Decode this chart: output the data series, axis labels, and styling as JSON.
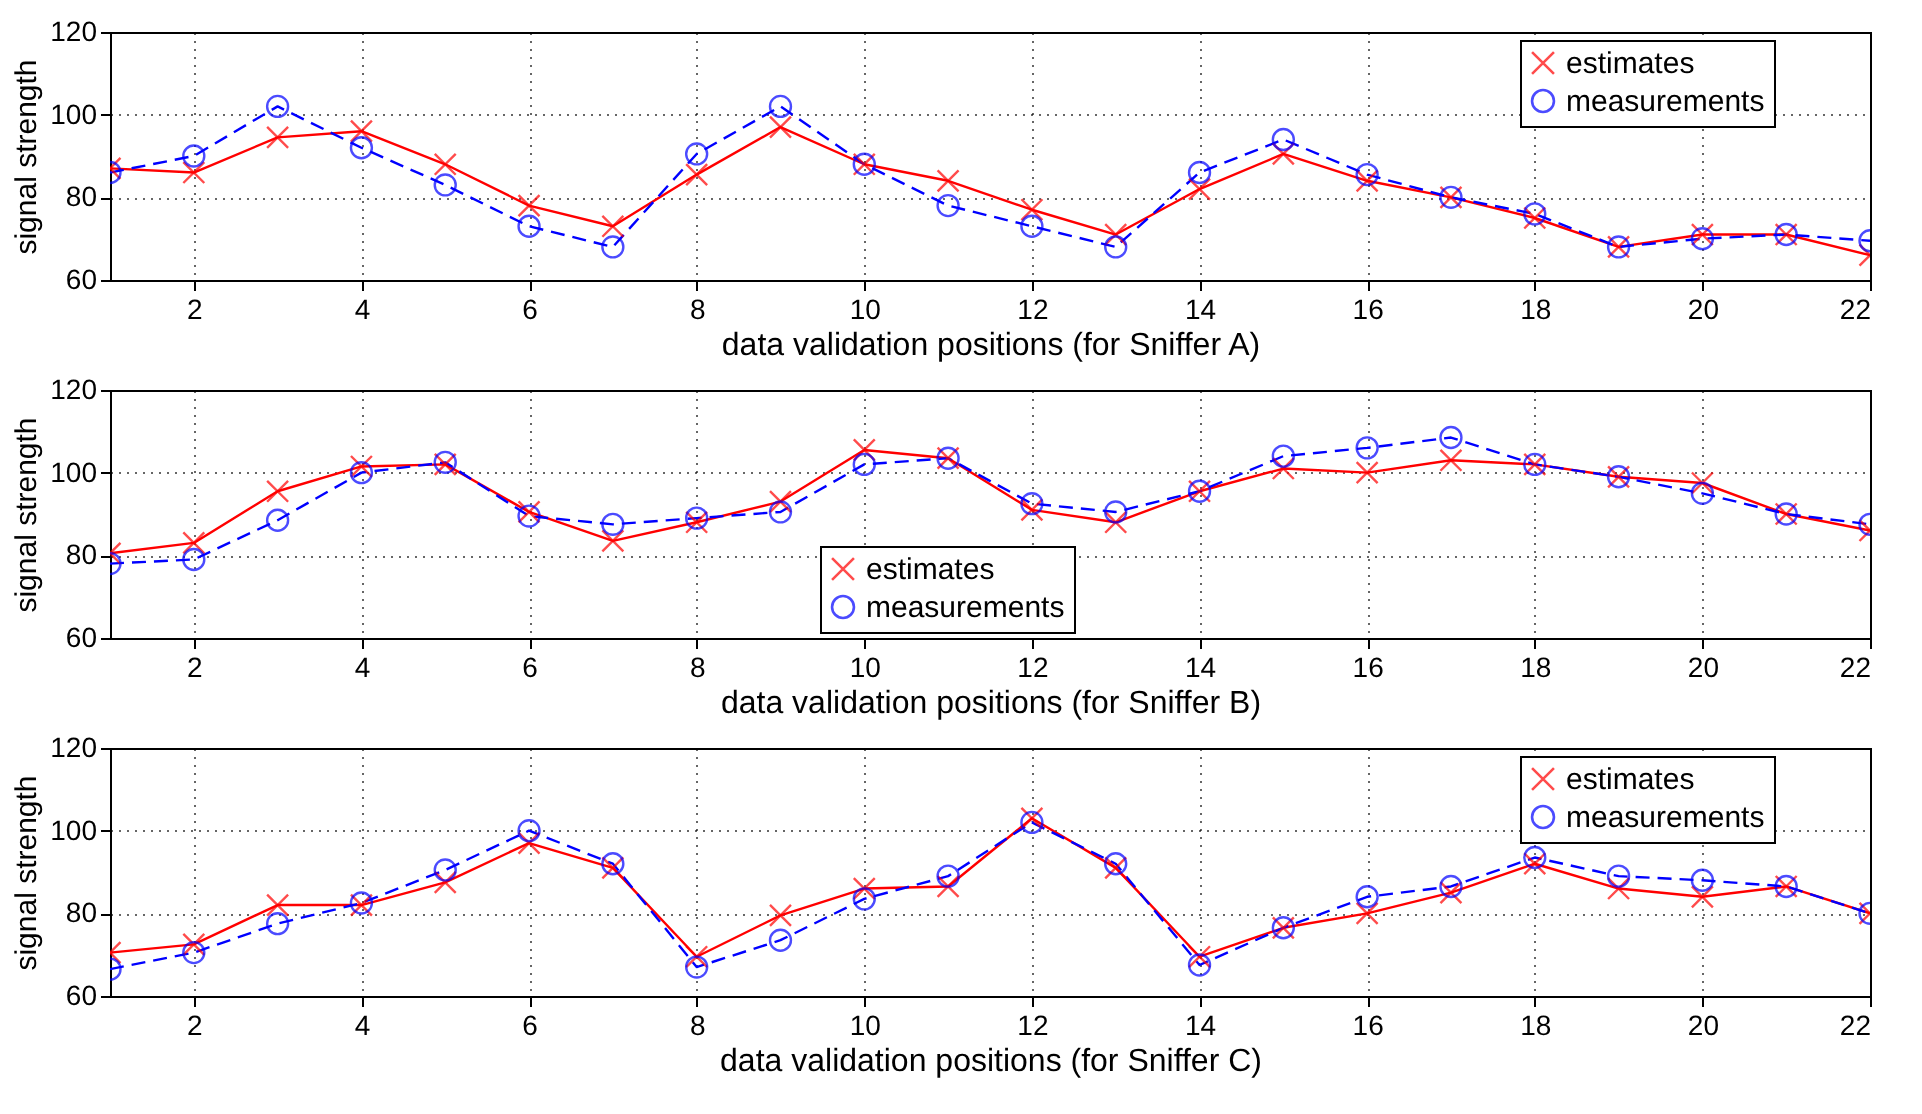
{
  "chart_data": [
    {
      "type": "line",
      "xlabel": "data validation positions (for Sniffer A)",
      "ylabel": "signal strength",
      "x": [
        1,
        2,
        3,
        4,
        5,
        6,
        7,
        8,
        9,
        10,
        11,
        12,
        13,
        14,
        15,
        16,
        17,
        18,
        19,
        20,
        21,
        22
      ],
      "xlim": [
        1,
        22
      ],
      "xticks": [
        2,
        4,
        6,
        8,
        10,
        12,
        14,
        16,
        18,
        20,
        22
      ],
      "ylim": [
        60,
        120
      ],
      "yticks": [
        60,
        80,
        100,
        120
      ],
      "grid": true,
      "legend": "top right",
      "series": [
        {
          "name": "estimates",
          "color": "#ff0000",
          "marker": "cross",
          "line_style": "solid",
          "values": [
            87,
            86,
            94.5,
            96,
            88,
            78,
            73,
            85.5,
            97,
            88,
            84,
            77,
            71,
            82,
            90.5,
            84,
            80,
            75,
            68,
            71,
            71,
            66
          ]
        },
        {
          "name": "measurements",
          "color": "#0000ff",
          "marker": "circle",
          "line_style": "dashed",
          "values": [
            86,
            90,
            102,
            92,
            83,
            73,
            68,
            90.5,
            102,
            88,
            78,
            73,
            68,
            86,
            94,
            85.5,
            80,
            76,
            68,
            70,
            71,
            69.5
          ]
        }
      ]
    },
    {
      "type": "line",
      "xlabel": "data validation positions (for Sniffer B)",
      "ylabel": "signal strength",
      "x": [
        1,
        2,
        3,
        4,
        5,
        6,
        7,
        8,
        9,
        10,
        11,
        12,
        13,
        14,
        15,
        16,
        17,
        18,
        19,
        20,
        21,
        22
      ],
      "xlim": [
        1,
        22
      ],
      "xticks": [
        2,
        4,
        6,
        8,
        10,
        12,
        14,
        16,
        18,
        20,
        22
      ],
      "ylim": [
        60,
        120
      ],
      "yticks": [
        60,
        80,
        100,
        120
      ],
      "grid": true,
      "legend": "bottom",
      "series": [
        {
          "name": "estimates",
          "color": "#ff0000",
          "marker": "cross",
          "line_style": "solid",
          "values": [
            80.5,
            83,
            95.5,
            101.5,
            102,
            90.5,
            83.5,
            88,
            93,
            105.5,
            103.5,
            91,
            88,
            95.5,
            101,
            100,
            103,
            102,
            99,
            97.5,
            90,
            86
          ]
        },
        {
          "name": "measurements",
          "color": "#0000ff",
          "marker": "circle",
          "line_style": "dashed",
          "values": [
            78,
            79,
            88.5,
            100,
            102.5,
            89.5,
            87.5,
            89,
            90.5,
            102,
            103.5,
            92.5,
            90.5,
            95.5,
            104,
            106,
            108.5,
            102,
            99,
            95,
            90,
            87.5
          ]
        }
      ]
    },
    {
      "type": "line",
      "xlabel": "data validation positions (for Sniffer C)",
      "ylabel": "signal strength",
      "x": [
        1,
        2,
        3,
        4,
        5,
        6,
        7,
        8,
        9,
        10,
        11,
        12,
        13,
        14,
        15,
        16,
        17,
        18,
        19,
        20,
        21,
        22
      ],
      "xlim": [
        1,
        22
      ],
      "xticks": [
        2,
        4,
        6,
        8,
        10,
        12,
        14,
        16,
        18,
        20,
        22
      ],
      "ylim": [
        60,
        120
      ],
      "yticks": [
        60,
        80,
        100,
        120
      ],
      "grid": true,
      "legend": "top right",
      "series": [
        {
          "name": "estimates",
          "color": "#ff0000",
          "marker": "cross",
          "line_style": "solid",
          "values": [
            70.5,
            72.5,
            82,
            82,
            87.5,
            97,
            91,
            69.5,
            79.5,
            86,
            86.5,
            103,
            91,
            69.5,
            76.5,
            80,
            85,
            92,
            86,
            84,
            86.5,
            80
          ]
        },
        {
          "name": "measurements",
          "color": "#0000ff",
          "marker": "circle",
          "line_style": "dashed",
          "values": [
            66.5,
            70.5,
            77.5,
            82.5,
            90.5,
            100,
            92,
            67,
            73.5,
            83.5,
            89,
            102,
            92,
            67.5,
            76.5,
            84,
            86.5,
            93.5,
            89,
            88,
            86.5,
            80
          ]
        }
      ]
    }
  ]
}
